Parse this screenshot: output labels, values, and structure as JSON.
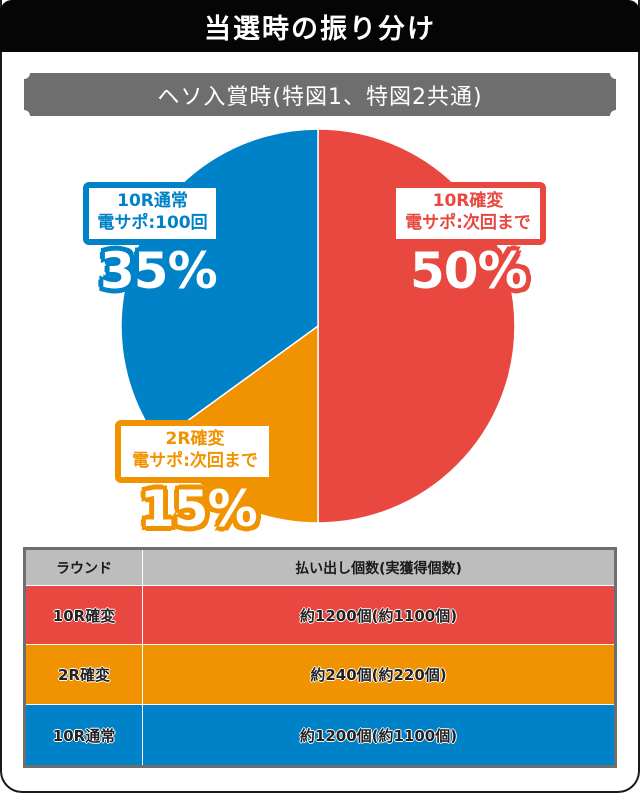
{
  "header": {
    "title": "当選時の振り分け",
    "subtitle": "ヘソ入賞時(特図1、特図2共通)"
  },
  "colors": {
    "red": "#e84840",
    "orange": "#f19300",
    "blue": "#0082c8",
    "title_bg": "#050505",
    "subtitle_bg": "#6e6e6e",
    "table_header_bg": "#bdbdbd"
  },
  "chart_data": {
    "type": "pie",
    "title": "当選時の振り分け",
    "subtitle": "ヘソ入賞時(特図1、特図2共通)",
    "slices": [
      {
        "label": "10R確変",
        "sublabel": "電サポ:次回まで",
        "value": 50,
        "display": "50%",
        "color": "#e84840"
      },
      {
        "label": "2R確変",
        "sublabel": "電サポ:次回まで",
        "value": 15,
        "display": "15%",
        "color": "#f19300"
      },
      {
        "label": "10R通常",
        "sublabel": "電サポ:100回",
        "value": 35,
        "display": "35%",
        "color": "#0082c8"
      }
    ],
    "start_angle_deg": 0,
    "direction": "clockwise"
  },
  "labels": {
    "red": {
      "line1": "10R確変",
      "line2": "電サポ:次回まで",
      "pct": "50%"
    },
    "orange": {
      "line1": "2R確変",
      "line2": "電サポ:次回まで",
      "pct": "15%"
    },
    "blue": {
      "line1": "10R通常",
      "line2": "電サポ:100回",
      "pct": "35%"
    }
  },
  "table": {
    "headers": [
      "ラウンド",
      "払い出し個数(実獲得個数)"
    ],
    "rows": [
      {
        "round": "10R確変",
        "payout": "約1200個(約1100個)"
      },
      {
        "round": "2R確変",
        "payout": "約240個(約220個)"
      },
      {
        "round": "10R通常",
        "payout": "約1200個(約1100個)"
      }
    ]
  }
}
